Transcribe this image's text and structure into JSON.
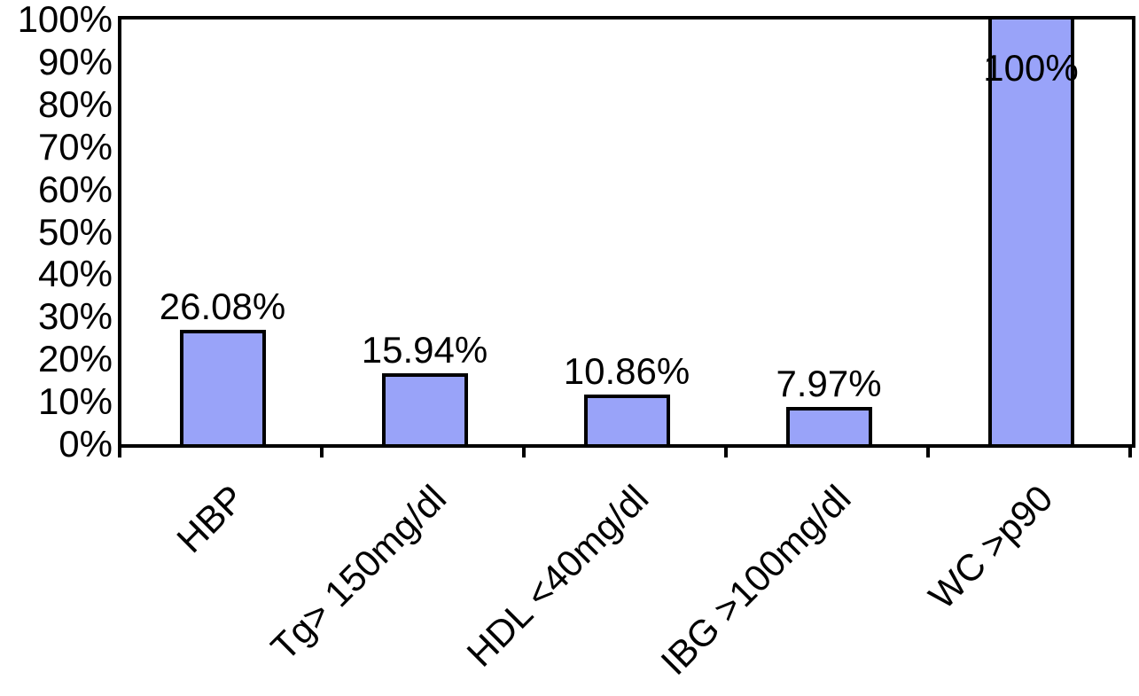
{
  "chart_data": {
    "type": "bar",
    "title": "",
    "xlabel": "",
    "ylabel": "",
    "categories": [
      "HBP",
      "Tg> 150mg/dl",
      "HDL <40mg/dl",
      "IBG >100mg/dl",
      "WC >p90"
    ],
    "values": [
      26.08,
      15.94,
      10.86,
      7.97,
      100
    ],
    "data_labels": [
      "26.08%",
      "15.94%",
      "10.86%",
      "7.97%",
      "100%"
    ],
    "y_tick_labels": [
      "100%",
      "90%",
      "80%",
      "70%",
      "60%",
      "50%",
      "40%",
      "30%",
      "20%",
      "10%",
      "0%"
    ],
    "y_tick_values": [
      100,
      90,
      80,
      70,
      60,
      50,
      40,
      30,
      20,
      10,
      0
    ],
    "ylim": [
      0,
      100
    ],
    "grid": false,
    "legend": false,
    "x_label_rotation_deg": 45,
    "colors": {
      "bar_fill": "#99A3F9",
      "bar_border": "#000000",
      "axis": "#000000",
      "text": "#000000",
      "background": "#FFFFFF"
    }
  }
}
